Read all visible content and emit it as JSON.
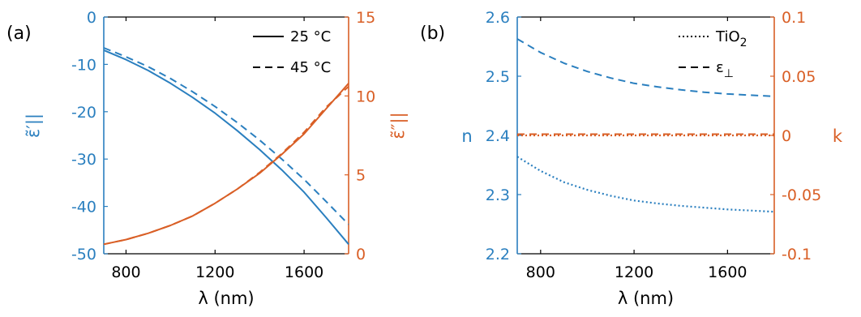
{
  "colors": {
    "left_axis": "#2A7FBF",
    "right_axis": "#D95F26",
    "frame": "#000000"
  },
  "chart_data": [
    {
      "type": "line",
      "panel_label": "(a)",
      "xlabel": "λ (nm)",
      "ylabel_left": "ε̃′||",
      "ylabel_right": "ε̃″||",
      "xlim": [
        700,
        1800
      ],
      "ylim_left": [
        -50,
        0
      ],
      "ylim_right": [
        0,
        15
      ],
      "xticks": [
        "800",
        "1200",
        "1600"
      ],
      "xtick_values": [
        800,
        1200,
        1600
      ],
      "yticks_left": [
        "0",
        "-10",
        "-20",
        "-30",
        "-40",
        "-50"
      ],
      "ytick_left_values": [
        0,
        -10,
        -20,
        -30,
        -40,
        -50
      ],
      "yticks_right": [
        "15",
        "10",
        "5",
        "0"
      ],
      "ytick_right_values": [
        15,
        10,
        5,
        0
      ],
      "legend": [
        {
          "label": "25 °C",
          "style": "solid"
        },
        {
          "label": "45 °C",
          "style": "dashed"
        }
      ],
      "legend_position": "top-right",
      "x": [
        700,
        800,
        900,
        1000,
        1100,
        1200,
        1300,
        1400,
        1500,
        1600,
        1700,
        1800
      ],
      "series": [
        {
          "axis": "left",
          "style": "solid",
          "values": [
            -7.0,
            -9.0,
            -11.3,
            -14.0,
            -17.0,
            -20.3,
            -24.0,
            -28.0,
            -32.3,
            -37.0,
            -42.4,
            -48.0
          ]
        },
        {
          "axis": "left",
          "style": "dashed",
          "values": [
            -6.5,
            -8.4,
            -10.5,
            -13.0,
            -15.8,
            -18.9,
            -22.3,
            -26.0,
            -30.0,
            -34.3,
            -39.0,
            -43.8
          ]
        },
        {
          "axis": "right",
          "style": "solid",
          "values": [
            0.6,
            0.9,
            1.3,
            1.8,
            2.4,
            3.2,
            4.1,
            5.1,
            6.3,
            7.6,
            9.2,
            10.8
          ]
        },
        {
          "axis": "right",
          "style": "dashed",
          "values": [
            0.6,
            0.9,
            1.3,
            1.8,
            2.4,
            3.2,
            4.1,
            5.15,
            6.35,
            7.7,
            9.3,
            10.6
          ]
        }
      ]
    },
    {
      "type": "line",
      "panel_label": "(b)",
      "xlabel": "λ (nm)",
      "ylabel_left": "n",
      "ylabel_right": "k",
      "xlim": [
        700,
        1800
      ],
      "ylim_left": [
        2.2,
        2.6
      ],
      "ylim_right": [
        -0.1,
        0.1
      ],
      "xticks": [
        "800",
        "1200",
        "1600"
      ],
      "xtick_values": [
        800,
        1200,
        1600
      ],
      "yticks_left": [
        "2.6",
        "2.5",
        "2.4",
        "2.3",
        "2.2"
      ],
      "ytick_left_values": [
        2.6,
        2.5,
        2.4,
        2.3,
        2.2
      ],
      "yticks_right": [
        "0.1",
        "0.05",
        "0",
        "-0.05",
        "-0.1"
      ],
      "ytick_right_values": [
        0.1,
        0.05,
        0,
        -0.05,
        -0.1
      ],
      "legend": [
        {
          "label": "TiO",
          "sub": "2",
          "style": "dotted"
        },
        {
          "label": "ε",
          "sub": "⊥",
          "style": "dashed"
        }
      ],
      "legend_position": "top-right",
      "x": [
        700,
        800,
        900,
        1000,
        1100,
        1200,
        1300,
        1400,
        1500,
        1600,
        1700,
        1800
      ],
      "series": [
        {
          "axis": "left",
          "style": "dashed",
          "values": [
            2.563,
            2.54,
            2.522,
            2.508,
            2.497,
            2.488,
            2.482,
            2.477,
            2.473,
            2.47,
            2.468,
            2.466
          ]
        },
        {
          "axis": "left",
          "style": "dotted",
          "values": [
            2.364,
            2.34,
            2.321,
            2.308,
            2.298,
            2.29,
            2.285,
            2.281,
            2.278,
            2.275,
            2.273,
            2.271
          ]
        },
        {
          "axis": "right",
          "style": "dashed",
          "values": [
            0.001,
            0.001,
            0.001,
            0.001,
            0.001,
            0.001,
            0.001,
            0.001,
            0.001,
            0.001,
            0.001,
            0.001
          ]
        },
        {
          "axis": "right",
          "style": "dotted",
          "values": [
            0,
            0,
            0,
            0,
            0,
            0,
            0,
            0,
            0,
            0,
            0,
            0
          ]
        }
      ]
    }
  ]
}
